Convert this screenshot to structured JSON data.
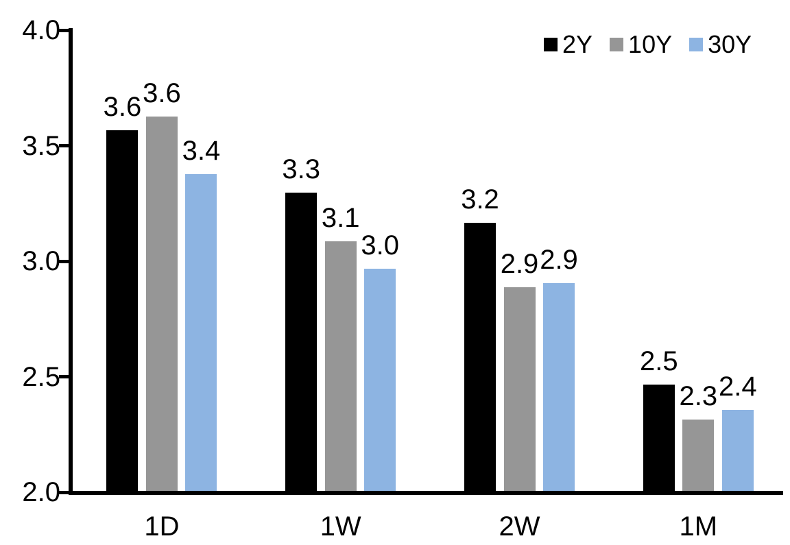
{
  "chart_data": {
    "type": "bar",
    "title": "",
    "xlabel": "",
    "ylabel": "",
    "categories": [
      "1D",
      "1W",
      "2W",
      "1M"
    ],
    "series": [
      {
        "name": "2Y",
        "color": "#000000",
        "values": [
          3.56,
          3.29,
          3.16,
          2.46
        ],
        "labels": [
          "3.6",
          "3.3",
          "3.2",
          "2.5"
        ]
      },
      {
        "name": "10Y",
        "color": "#969696",
        "values": [
          3.62,
          3.08,
          2.88,
          2.31
        ],
        "labels": [
          "3.6",
          "3.1",
          "2.9",
          "2.3"
        ]
      },
      {
        "name": "30Y",
        "color": "#8DB4E2",
        "values": [
          3.37,
          2.96,
          2.9,
          2.35
        ],
        "labels": [
          "3.4",
          "3.0",
          "2.9",
          "2.4"
        ]
      }
    ],
    "ylim": [
      2.0,
      4.0
    ],
    "yticks": [
      {
        "value": 4.0,
        "label": "4.0"
      },
      {
        "value": 3.5,
        "label": "3.5"
      },
      {
        "value": 3.0,
        "label": "3.0"
      },
      {
        "value": 2.5,
        "label": "2.5"
      },
      {
        "value": 2.0,
        "label": "2.0"
      }
    ],
    "grid": false,
    "legend_position": "top-right",
    "axis_color": "#000000",
    "text_color": "#000000",
    "background_color": "#ffffff"
  }
}
